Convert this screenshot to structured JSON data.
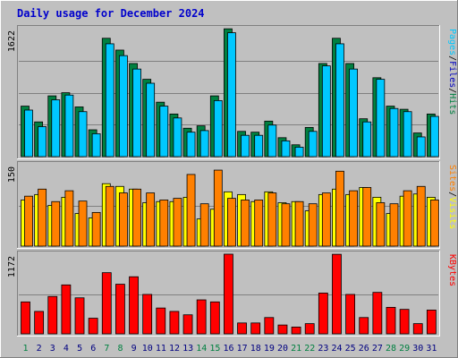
{
  "chart_data": {
    "type": "bar",
    "title": "Daily usage for December 2024",
    "categories": [
      "1",
      "2",
      "3",
      "4",
      "5",
      "6",
      "7",
      "8",
      "9",
      "10",
      "11",
      "12",
      "13",
      "14",
      "15",
      "16",
      "17",
      "18",
      "19",
      "20",
      "21",
      "22",
      "23",
      "24",
      "25",
      "26",
      "27",
      "28",
      "29",
      "30",
      "31"
    ],
    "weekend_days": [
      "1",
      "7",
      "8",
      "14",
      "15",
      "21",
      "22",
      "28",
      "29"
    ],
    "panels": [
      {
        "name": "hits-files-pages",
        "ymax": 1622,
        "ymax_label": "1622",
        "legend": [
          {
            "text": "Pages",
            "color": "#00c8ff"
          },
          {
            "text": "/",
            "color": "#000000"
          },
          {
            "text": "Files",
            "color": "#0000c0"
          },
          {
            "text": "/",
            "color": "#000000"
          },
          {
            "text": "Hits",
            "color": "#008040"
          }
        ],
        "series": [
          {
            "name": "Hits",
            "color": "#008040",
            "values": [
              640,
              440,
              770,
              810,
              630,
              340,
              1500,
              1350,
              1180,
              980,
              690,
              540,
              360,
              390,
              770,
              1620,
              320,
              310,
              450,
              240,
              150,
              370,
              1180,
              1500,
              1180,
              480,
              1000,
              640,
              600,
              300,
              540
            ]
          },
          {
            "name": "Files",
            "color": "#00c8ff",
            "values": [
              590,
              380,
              720,
              780,
              570,
              290,
              1430,
              1280,
              1110,
              930,
              640,
              490,
              310,
              330,
              710,
              1570,
              270,
              270,
              400,
              200,
              120,
              320,
              1150,
              1430,
              1110,
              440,
              980,
              610,
              570,
              250,
              510
            ]
          }
        ]
      },
      {
        "name": "visits-sites",
        "ymax": 150,
        "ymax_label": "150",
        "legend": [
          {
            "text": "Sites",
            "color": "#ff8000"
          },
          {
            "text": "/",
            "color": "#000000"
          },
          {
            "text": "Visits",
            "color": "#ffff00"
          }
        ],
        "series": [
          {
            "name": "Visits",
            "color": "#ffff00",
            "values": [
              85,
              95,
              75,
              90,
              60,
              52,
              115,
              110,
              105,
              80,
              82,
              82,
              90,
              50,
              68,
              100,
              95,
              82,
              100,
              80,
              82,
              65,
              95,
              105,
              95,
              108,
              90,
              60,
              92,
              96,
              90
            ]
          },
          {
            "name": "Sites",
            "color": "#ff8000",
            "values": [
              92,
              105,
              82,
              102,
              83,
              62,
              110,
              98,
              105,
              98,
              85,
              88,
              132,
              78,
              140,
              88,
              85,
              85,
              98,
              78,
              82,
              78,
              98,
              138,
              102,
              108,
              80,
              78,
              102,
              110,
              85
            ]
          }
        ]
      },
      {
        "name": "kbytes",
        "ymax": 1172,
        "ymax_label": "1172",
        "legend": [
          {
            "text": "KBytes",
            "color": "#ff0000"
          }
        ],
        "series": [
          {
            "name": "KBytes",
            "color": "#ff0000",
            "values": [
              470,
              330,
              550,
              720,
              530,
              230,
              900,
              730,
              840,
              580,
              380,
              330,
              280,
              500,
              470,
              1172,
              160,
              160,
              240,
              130,
              100,
              150,
              600,
              1170,
              580,
              240,
              610,
              390,
              360,
              150,
              350
            ]
          }
        ]
      }
    ]
  }
}
